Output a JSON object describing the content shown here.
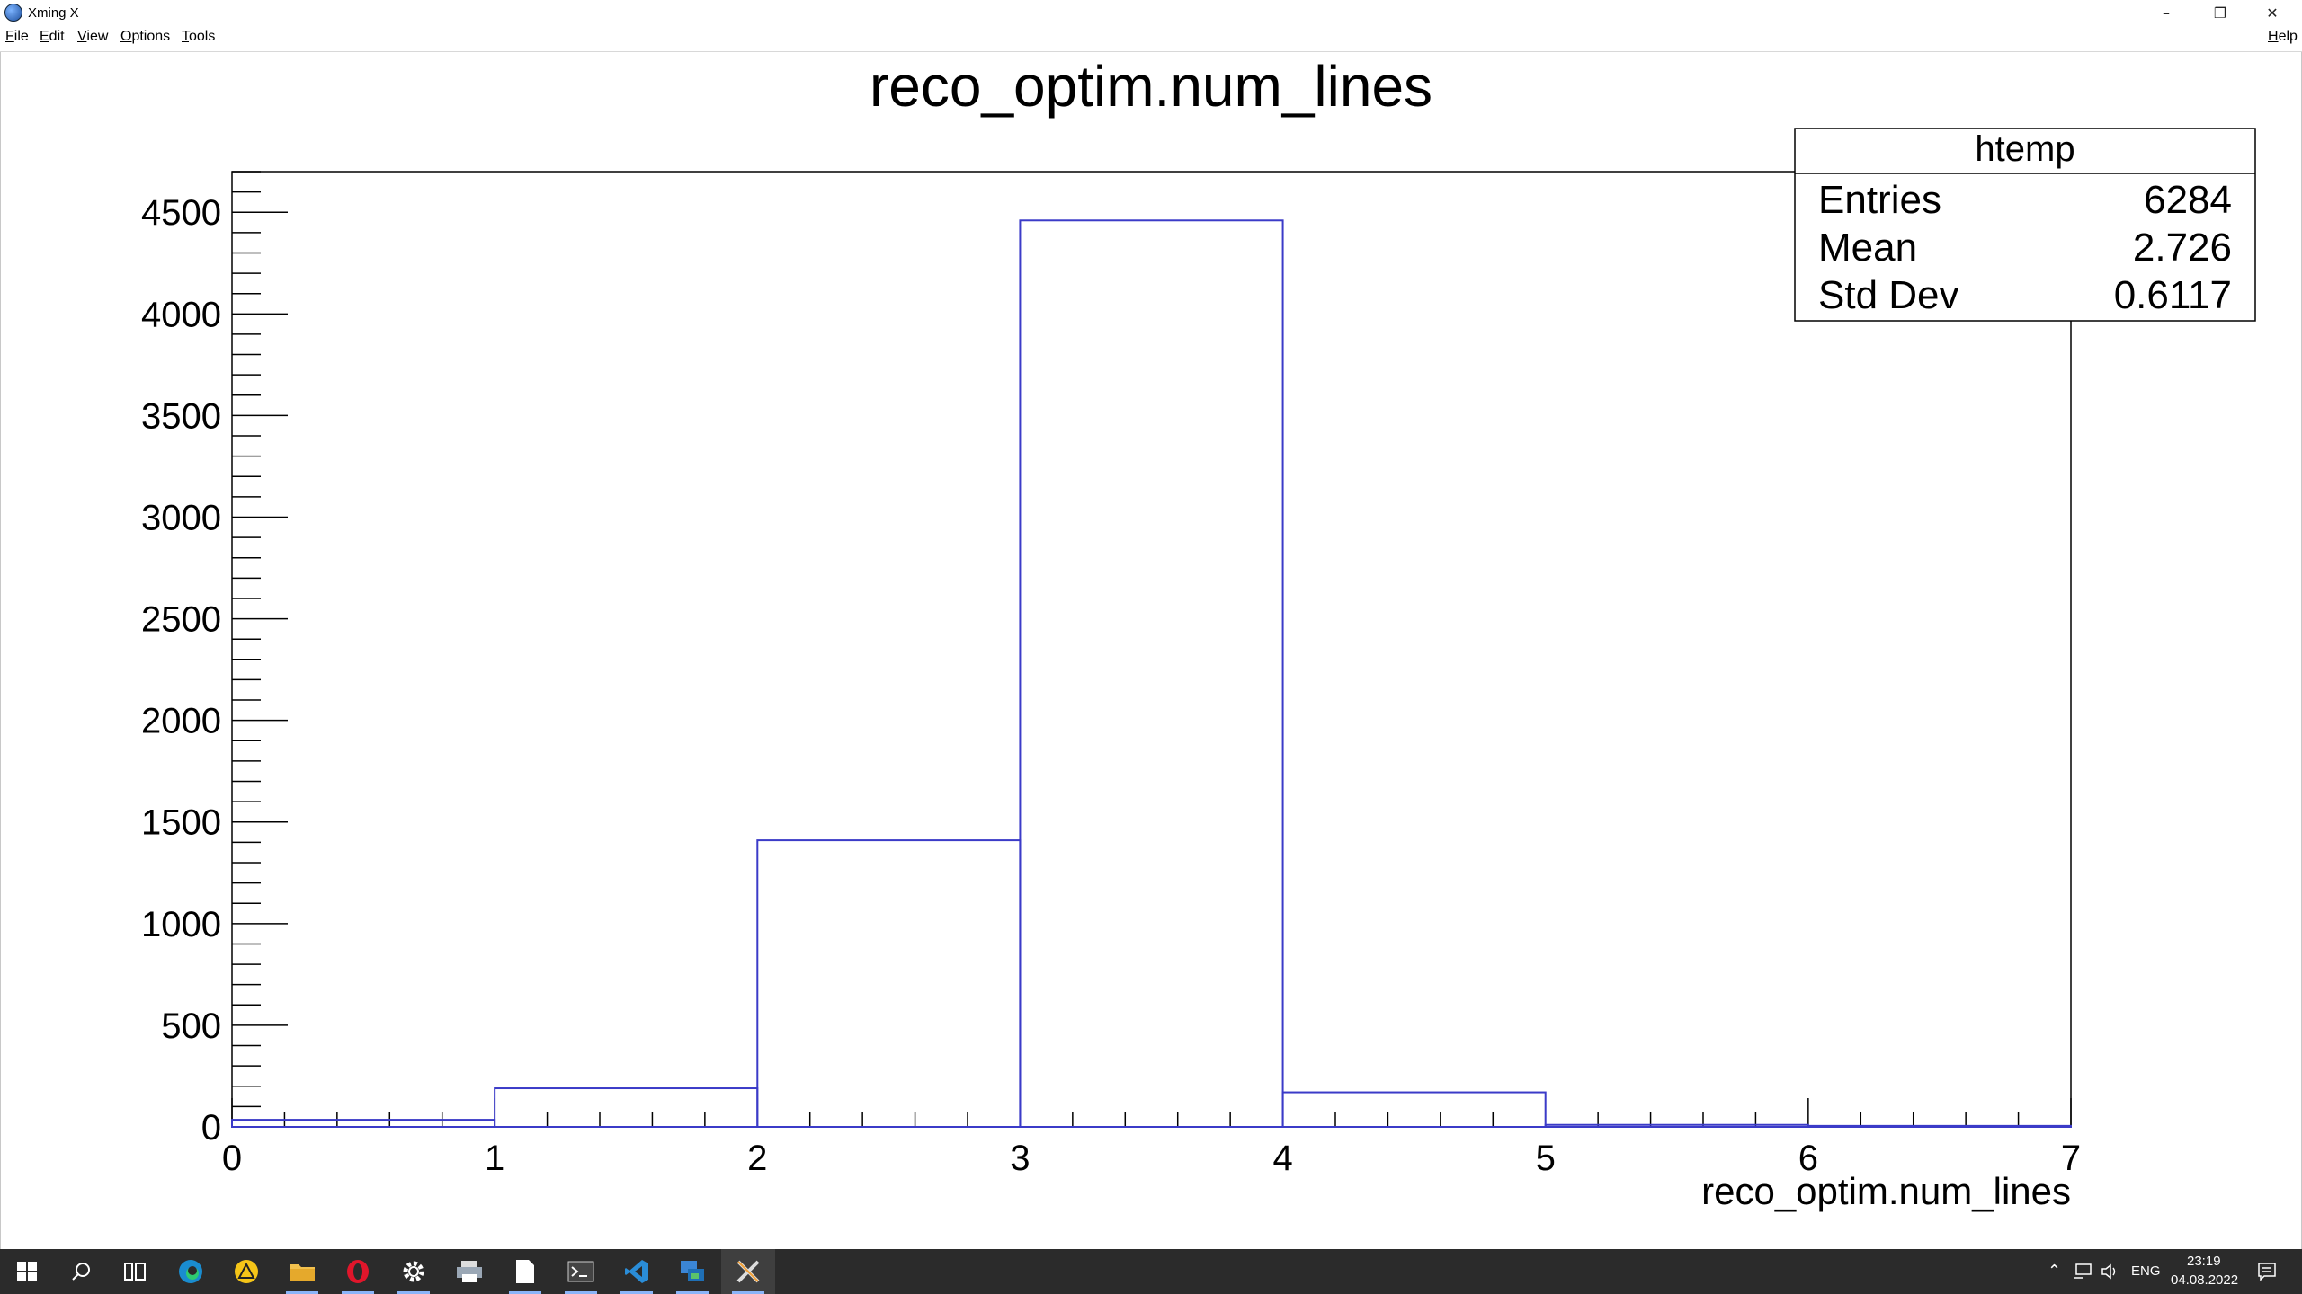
{
  "window": {
    "title": "Xming X",
    "icon": "xming-icon",
    "controls": [
      "minimize-icon",
      "restore-icon",
      "close-icon"
    ]
  },
  "menubar": {
    "items": [
      "File",
      "Edit",
      "View",
      "Options",
      "Tools"
    ],
    "help": "Help"
  },
  "chart_data": {
    "type": "bar",
    "title": "reco_optim.num_lines",
    "xlabel": "reco_optim.num_lines",
    "ylabel": "",
    "xlim": [
      0,
      7
    ],
    "ylim": [
      0,
      4700
    ],
    "x_ticks": [
      0,
      1,
      2,
      3,
      4,
      5,
      6,
      7
    ],
    "y_ticks": [
      0,
      500,
      1000,
      1500,
      2000,
      2500,
      3000,
      3500,
      4000,
      4500
    ],
    "bin_edges": [
      0,
      1,
      2,
      3,
      4,
      5,
      6,
      7
    ],
    "values": [
      35,
      190,
      1410,
      4460,
      170,
      10,
      5
    ],
    "line_color": "#3b3bc8",
    "grid": false,
    "stats_box": {
      "name": "htemp",
      "rows": [
        {
          "label": "Entries",
          "value": "6284"
        },
        {
          "label": "Mean",
          "value": "2.726"
        },
        {
          "label": "Std Dev",
          "value": "0.6117"
        }
      ]
    }
  },
  "taskbar": {
    "apps": [
      "windows-start-icon",
      "search-icon",
      "task-view-icon",
      "edge-icon",
      "warning-app-icon",
      "file-explorer-icon",
      "opera-icon",
      "settings-icon",
      "printer-icon",
      "notepad-icon",
      "terminal-icon",
      "vscode-icon",
      "remote-desktop-icon",
      "xming-taskbar-icon"
    ],
    "tray": {
      "language": "ENG",
      "time": "23:19",
      "date": "04.08.2022"
    }
  }
}
